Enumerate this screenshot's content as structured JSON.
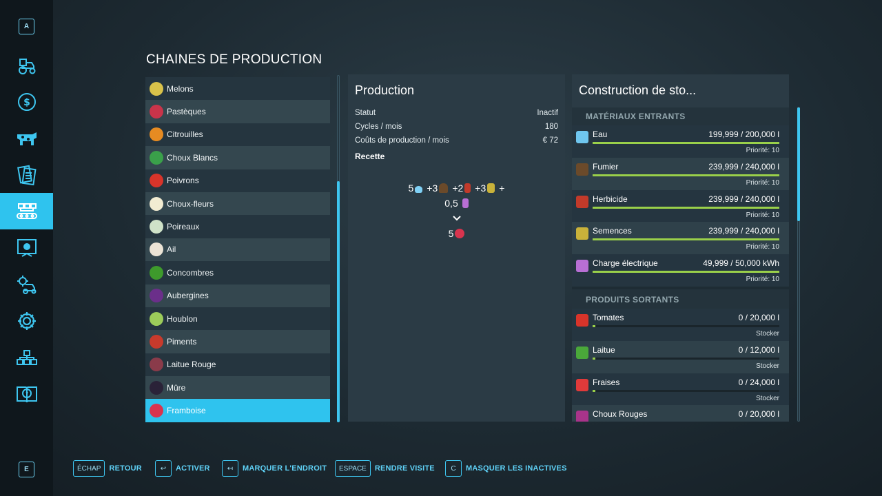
{
  "sidebar": {
    "top_key": "A",
    "bottom_key": "E",
    "items": [
      {
        "icon": "tractor-icon"
      },
      {
        "icon": "dollar-icon"
      },
      {
        "icon": "cow-icon"
      },
      {
        "icon": "contracts-icon"
      },
      {
        "icon": "production-chain-icon",
        "active": true
      },
      {
        "icon": "map-icon"
      },
      {
        "icon": "garage-icon"
      },
      {
        "icon": "gear-icon"
      },
      {
        "icon": "hierarchy-icon"
      },
      {
        "icon": "help-book-icon"
      }
    ]
  },
  "page_title": "CHAINES DE PRODUCTION",
  "chains": [
    {
      "label": "Melons",
      "color": "#d9c24a"
    },
    {
      "label": "Pastèques",
      "color": "#c9344a"
    },
    {
      "label": "Citrouilles",
      "color": "#e68b22"
    },
    {
      "label": "Choux Blancs",
      "color": "#3aa04a"
    },
    {
      "label": "Poivrons",
      "color": "#d8342a"
    },
    {
      "label": "Choux-fleurs",
      "color": "#f2ecd2"
    },
    {
      "label": "Poireaux",
      "color": "#cfe2c8"
    },
    {
      "label": "Ail",
      "color": "#ece4d6"
    },
    {
      "label": "Concombres",
      "color": "#3e9a2c"
    },
    {
      "label": "Aubergines",
      "color": "#6b2f8a"
    },
    {
      "label": "Houblon",
      "color": "#9ccc5a"
    },
    {
      "label": "Piments",
      "color": "#c83a2c"
    },
    {
      "label": "Laitue Rouge",
      "color": "#8a3b4a"
    },
    {
      "label": "Mûre",
      "color": "#2a2238"
    },
    {
      "label": "Framboise",
      "color": "#d8344e"
    }
  ],
  "production": {
    "title": "Production",
    "stats": [
      {
        "label": "Statut",
        "value": "Inactif"
      },
      {
        "label": "Cycles / mois",
        "value": "180"
      },
      {
        "label": "Coûts de production / mois",
        "value": "€ 72"
      }
    ],
    "recipe_label": "Recette",
    "recipe": {
      "line1": [
        "5",
        "+3",
        "+2",
        "+3",
        "+"
      ],
      "line2": "0,5",
      "output": "5"
    }
  },
  "storage": {
    "title": "Construction de sto...",
    "inputs_label": "MATÉRIAUX ENTRANTS",
    "inputs": [
      {
        "name": "Eau",
        "amount": "199,999  / 200,000 l",
        "fill": 1.0,
        "sub": "Priorité: 10",
        "color": "#6fc6ef"
      },
      {
        "name": "Fumier",
        "amount": "239,999  / 240,000 l",
        "fill": 1.0,
        "sub": "Priorité: 10",
        "color": "#6b4a2a"
      },
      {
        "name": "Herbicide",
        "amount": "239,999  / 240,000 l",
        "fill": 1.0,
        "sub": "Priorité: 10",
        "color": "#c23a2a"
      },
      {
        "name": "Semences",
        "amount": "239,999  / 240,000 l",
        "fill": 1.0,
        "sub": "Priorité: 10",
        "color": "#c9b23a"
      },
      {
        "name": "Charge électrique",
        "amount": "49,999  / 50,000 kWh",
        "fill": 1.0,
        "sub": "Priorité: 10",
        "color": "#b86fd4"
      }
    ],
    "outputs_label": "PRODUITS SORTANTS",
    "outputs": [
      {
        "name": "Tomates",
        "amount": "0  / 20,000 l",
        "fill": 0.0,
        "sub": "Stocker",
        "color": "#d8342a"
      },
      {
        "name": "Laitue",
        "amount": "0  / 12,000 l",
        "fill": 0.0,
        "sub": "Stocker",
        "color": "#4aa83a"
      },
      {
        "name": "Fraises",
        "amount": "0  / 24,000 l",
        "fill": 0.0,
        "sub": "Stocker",
        "color": "#e03a3a"
      },
      {
        "name": "Choux Rouges",
        "amount": "0  / 20,000 l",
        "fill": 0.0,
        "sub": "",
        "color": "#a8348a"
      }
    ]
  },
  "hints": [
    {
      "key": "ÉCHAP",
      "label": "RETOUR"
    },
    {
      "key": "↩",
      "label": "ACTIVER"
    },
    {
      "key": "↤",
      "label": "MARQUER L'ENDROIT"
    },
    {
      "key": "ESPACE",
      "label": "RENDRE VISITE"
    },
    {
      "key": "C",
      "label": "MASQUER LES INACTIVES"
    }
  ]
}
